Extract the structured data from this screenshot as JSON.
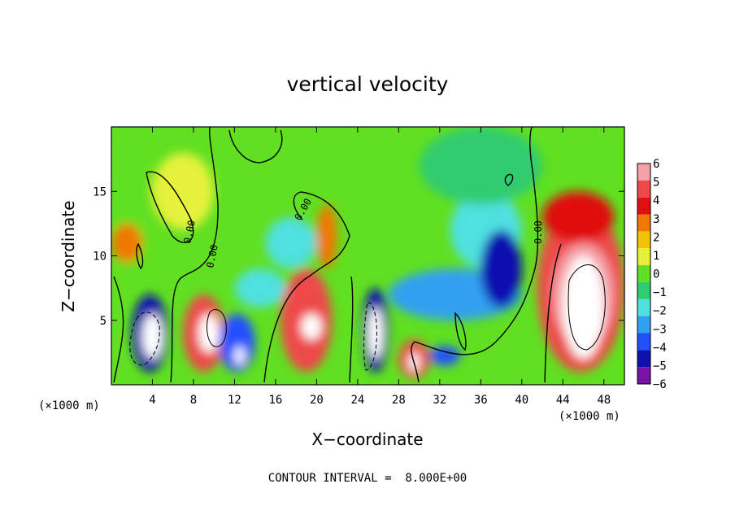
{
  "chart_data": {
    "type": "heatmap",
    "title": "vertical velocity",
    "xlabel": "X−coordinate",
    "ylabel": "Z−coordinate",
    "x_unit": "(×1000 m)",
    "y_unit": "(×1000 m)",
    "xlim": [
      0,
      50
    ],
    "ylim": [
      0,
      20
    ],
    "x_ticks": [
      4,
      8,
      12,
      16,
      20,
      24,
      28,
      32,
      36,
      40,
      44,
      48
    ],
    "y_ticks": [
      5,
      10,
      15
    ],
    "colorbar": {
      "levels": [
        6,
        5,
        4,
        3,
        2,
        1,
        0,
        -1,
        -2,
        -3,
        -4,
        -5,
        -6
      ],
      "labels": [
        "6",
        "5",
        "4",
        "3",
        "2",
        "1",
        "0",
        "−1",
        "−2",
        "−3",
        "−4",
        "−5",
        "−6"
      ],
      "colors": [
        "#f4a0a8",
        "#ee4848",
        "#e01010",
        "#f07800",
        "#f2c200",
        "#e6f23a",
        "#60e020",
        "#30cc70",
        "#50e0e0",
        "#30a0f0",
        "#2050ff",
        "#1010b0",
        "#7a12a8"
      ]
    },
    "contour_labels": [
      "0.00",
      "0.00",
      "0.00",
      "0.00"
    ],
    "note": "CONTOUR INTERVAL =  8.000E+00",
    "cells": [
      {
        "x": [
          0,
          4
        ],
        "z": [
          8,
          20
        ],
        "w": 0.4
      },
      {
        "x": [
          0,
          3
        ],
        "z": [
          9.5,
          12.5
        ],
        "w": 3
      },
      {
        "x": [
          2,
          5.5
        ],
        "z": [
          1,
          7
        ],
        "w": -5
      },
      {
        "x": [
          3,
          5
        ],
        "z": [
          2,
          5.5
        ],
        "w": -8
      },
      {
        "x": [
          7,
          11
        ],
        "z": [
          1,
          7
        ],
        "w": 4.5
      },
      {
        "x": [
          8.5,
          10.5
        ],
        "z": [
          2.5,
          5.5
        ],
        "w": 8
      },
      {
        "x": [
          4,
          10
        ],
        "z": [
          12,
          18
        ],
        "w": 1
      },
      {
        "x": [
          10.5,
          14
        ],
        "z": [
          1,
          5.5
        ],
        "w": -4.5
      },
      {
        "x": [
          12,
          13
        ],
        "z": [
          1.5,
          3
        ],
        "w": 7
      },
      {
        "x": [
          12,
          17
        ],
        "z": [
          6,
          9
        ],
        "w": -2.5
      },
      {
        "x": [
          15,
          20
        ],
        "z": [
          9,
          13
        ],
        "w": -2
      },
      {
        "x": [
          16.5,
          21.5
        ],
        "z": [
          1,
          9
        ],
        "w": 4.5
      },
      {
        "x": [
          18.5,
          20.5
        ],
        "z": [
          3.5,
          5.5
        ],
        "w": 8
      },
      {
        "x": [
          20,
          22
        ],
        "z": [
          9,
          14
        ],
        "w": 3
      },
      {
        "x": [
          24.5,
          27
        ],
        "z": [
          1,
          7.5
        ],
        "w": -5
      },
      {
        "x": [
          25,
          26.5
        ],
        "z": [
          2,
          6
        ],
        "w": -8
      },
      {
        "x": [
          28,
          31
        ],
        "z": [
          0.5,
          3.5
        ],
        "w": 4.5
      },
      {
        "x": [
          29,
          30
        ],
        "z": [
          1,
          2.5
        ],
        "w": 8
      },
      {
        "x": [
          27,
          40
        ],
        "z": [
          5,
          9
        ],
        "w": -3.5
      },
      {
        "x": [
          33,
          40
        ],
        "z": [
          9,
          15
        ],
        "w": -2.5
      },
      {
        "x": [
          36,
          40
        ],
        "z": [
          6,
          12
        ],
        "w": -5
      },
      {
        "x": [
          31,
          34
        ],
        "z": [
          1.5,
          3
        ],
        "w": -4
      },
      {
        "x": [
          41.5,
          50
        ],
        "z": [
          1,
          14
        ],
        "w": 4.5
      },
      {
        "x": [
          43,
          49
        ],
        "z": [
          3,
          11
        ],
        "w": 6
      },
      {
        "x": [
          44,
          48
        ],
        "z": [
          2,
          10
        ],
        "w": 8
      },
      {
        "x": [
          42,
          49
        ],
        "z": [
          11,
          15
        ],
        "w": 3.5
      },
      {
        "x": [
          30,
          42
        ],
        "z": [
          14,
          20
        ],
        "w": -1.2
      }
    ]
  }
}
